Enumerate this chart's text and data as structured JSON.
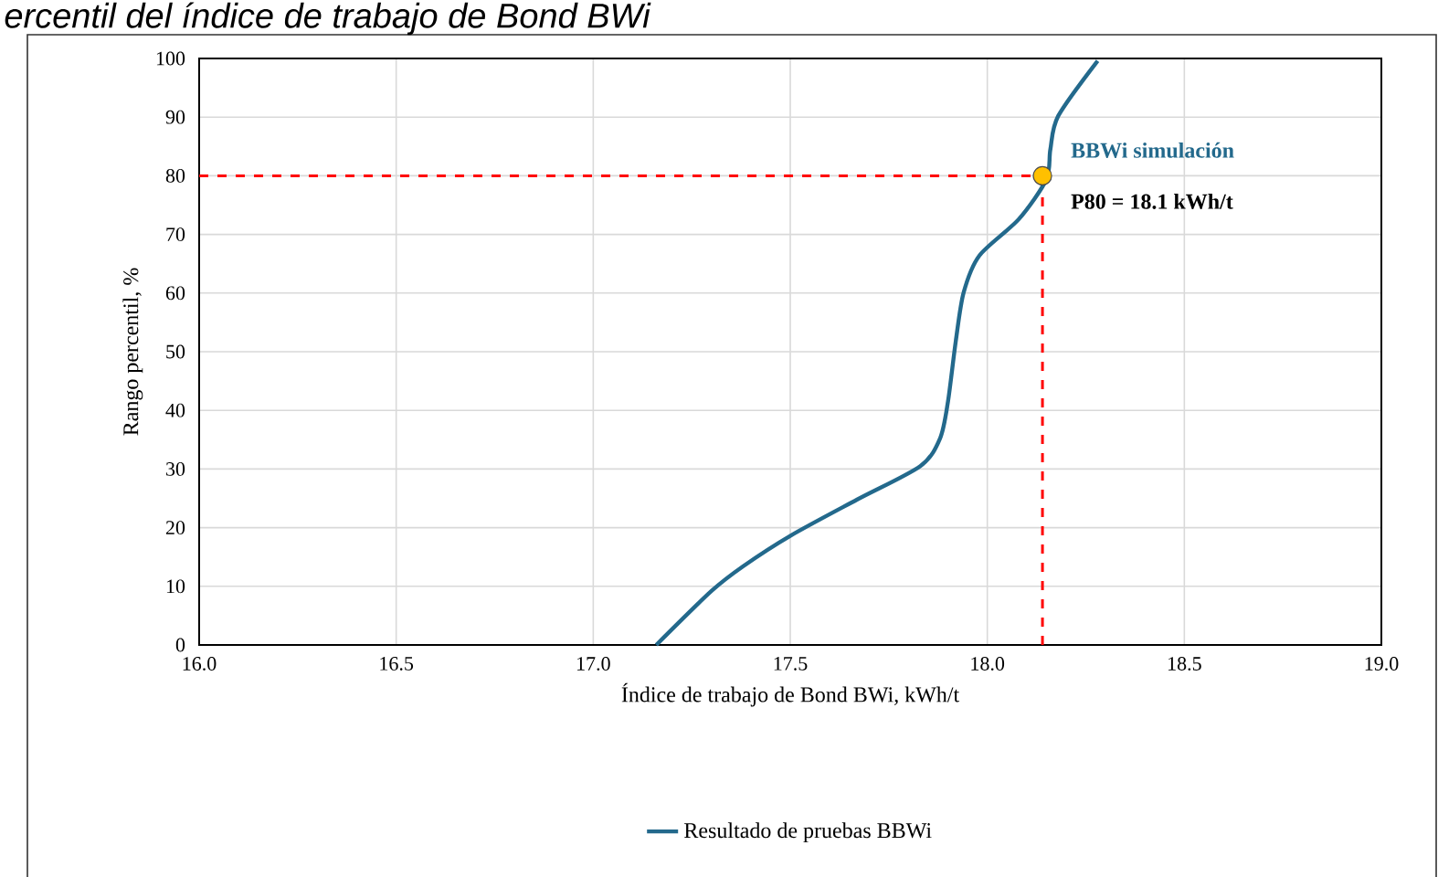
{
  "chart_data": {
    "type": "line",
    "title": "ercentil del índice de trabajo de Bond BWi",
    "xlabel": "Índice de trabajo de Bond BWi, kWh/t",
    "ylabel": "Rango percentil, %",
    "series": [
      {
        "name": "Resultado de pruebas BBWi",
        "color": "#23698c",
        "x": [
          17.16,
          17.3,
          17.38,
          17.5,
          17.67,
          17.83,
          17.88,
          17.9,
          17.92,
          17.94,
          17.98,
          18.08,
          18.15,
          18.16,
          18.18,
          18.28
        ],
        "values": [
          0,
          9.2,
          13.4,
          18.6,
          24.8,
          30.5,
          35.2,
          41.4,
          51.8,
          60.1,
          66.4,
          72.6,
          79.4,
          84.5,
          90.2,
          99.6
        ]
      },
      {
        "type": "scatter",
        "color": "#ffc000",
        "marker": "circle",
        "x": [
          18.14
        ],
        "values": [
          80
        ]
      }
    ],
    "xlim": [
      16,
      19
    ],
    "ylim": [
      0,
      100
    ],
    "xticks": [
      {
        "value": 16,
        "label": "16.0"
      },
      {
        "value": 16.5,
        "label": "16.5"
      },
      {
        "value": 17,
        "label": "17.0"
      },
      {
        "value": 17.5,
        "label": "17.5"
      },
      {
        "value": 18,
        "label": "18.0"
      },
      {
        "value": 18.5,
        "label": "18.5"
      },
      {
        "value": 19,
        "label": "19.0"
      }
    ],
    "yticks": [
      0,
      10,
      20,
      30,
      40,
      50,
      60,
      70,
      80,
      90,
      100
    ],
    "ref_lines": [
      {
        "axis": "y",
        "value": 80,
        "color": "#ff0000",
        "line_style": "dashed"
      },
      {
        "axis": "x",
        "value": 18.14,
        "color": "#ff0000",
        "line_style": "dashed"
      }
    ],
    "annotations": [
      {
        "text": "BBWi simulación",
        "x": 18.14,
        "y": 80
      },
      {
        "text": "P80 = 18.1 kWh/t",
        "x": 18.14,
        "y": 80
      }
    ],
    "grid": true,
    "legend": "bottom",
    "line_style": "solid"
  }
}
